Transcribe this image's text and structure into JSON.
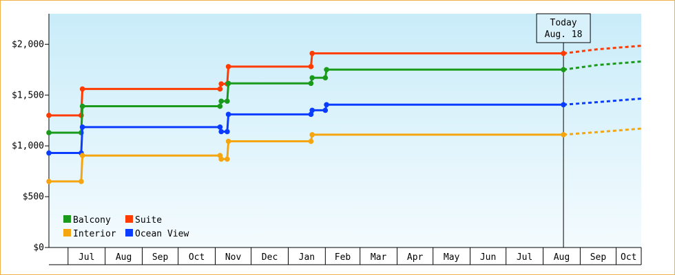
{
  "colors": {
    "balcony": "#1a9a1a",
    "suite": "#ff3b00",
    "interior": "#f5a510",
    "ocean_view": "#0a3cff",
    "plot_top": "#c9ecf9",
    "plot_bottom": "#f4fbfe",
    "frame": "#f0b04a"
  },
  "chart_data": {
    "type": "line",
    "step": true,
    "grid": false,
    "legend_position": "bottom-left",
    "x_type": "date",
    "xlim": [
      "2023-06-15",
      "2024-10-22"
    ],
    "ylim": [
      0,
      2300
    ],
    "y_ticks": [
      0,
      500,
      1000,
      1500,
      2000
    ],
    "y_tick_labels": [
      "$0",
      "$500",
      "$1,000",
      "$1,500",
      "$2,000"
    ],
    "x_tick_labels": [
      "Jul",
      "Aug",
      "Sep",
      "Oct",
      "Nov",
      "Dec",
      "Jan",
      "Feb",
      "Mar",
      "Apr",
      "May",
      "Jun",
      "Jul",
      "Aug",
      "Sep",
      "Oct"
    ],
    "x_tick_positions": [
      "2023-07-01",
      "2023-08-01",
      "2023-09-01",
      "2023-10-01",
      "2023-11-01",
      "2023-12-01",
      "2024-01-01",
      "2024-02-01",
      "2024-03-01",
      "2024-04-01",
      "2024-05-01",
      "2024-06-01",
      "2024-07-01",
      "2024-08-01",
      "2024-09-01",
      "2024-10-01"
    ],
    "today_annotation": {
      "line1": "Today",
      "line2": "Aug. 18",
      "date": "2024-08-18"
    },
    "series": [
      {
        "name": "Suite",
        "color_key": "suite",
        "points": [
          [
            "2023-06-15",
            1300
          ],
          [
            "2023-07-12",
            1300
          ],
          [
            "2023-07-13",
            1560
          ],
          [
            "2023-11-05",
            1560
          ],
          [
            "2023-11-06",
            1610
          ],
          [
            "2023-11-11",
            1610
          ],
          [
            "2023-11-12",
            1780
          ],
          [
            "2024-01-20",
            1780
          ],
          [
            "2024-01-21",
            1910
          ],
          [
            "2024-08-18",
            1910
          ]
        ],
        "projection": [
          [
            "2024-08-18",
            1910
          ],
          [
            "2024-09-15",
            1950
          ],
          [
            "2024-10-22",
            1985
          ]
        ]
      },
      {
        "name": "Balcony",
        "color_key": "balcony",
        "points": [
          [
            "2023-06-15",
            1130
          ],
          [
            "2023-07-12",
            1130
          ],
          [
            "2023-07-13",
            1390
          ],
          [
            "2023-11-05",
            1390
          ],
          [
            "2023-11-06",
            1440
          ],
          [
            "2023-11-11",
            1440
          ],
          [
            "2023-11-12",
            1615
          ],
          [
            "2024-01-20",
            1615
          ],
          [
            "2024-01-21",
            1670
          ],
          [
            "2024-02-01",
            1670
          ],
          [
            "2024-02-02",
            1750
          ],
          [
            "2024-08-18",
            1750
          ]
        ],
        "projection": [
          [
            "2024-08-18",
            1750
          ],
          [
            "2024-09-15",
            1795
          ],
          [
            "2024-10-22",
            1830
          ]
        ]
      },
      {
        "name": "Ocean View",
        "color_key": "ocean_view",
        "points": [
          [
            "2023-06-15",
            930
          ],
          [
            "2023-07-12",
            930
          ],
          [
            "2023-07-13",
            1185
          ],
          [
            "2023-11-05",
            1185
          ],
          [
            "2023-11-06",
            1140
          ],
          [
            "2023-11-11",
            1140
          ],
          [
            "2023-11-12",
            1310
          ],
          [
            "2024-01-20",
            1310
          ],
          [
            "2024-01-21",
            1350
          ],
          [
            "2024-02-01",
            1350
          ],
          [
            "2024-02-02",
            1405
          ],
          [
            "2024-08-18",
            1405
          ]
        ],
        "projection": [
          [
            "2024-08-18",
            1405
          ],
          [
            "2024-09-15",
            1430
          ],
          [
            "2024-10-22",
            1465
          ]
        ]
      },
      {
        "name": "Interior",
        "color_key": "interior",
        "points": [
          [
            "2023-06-15",
            650
          ],
          [
            "2023-07-12",
            650
          ],
          [
            "2023-07-13",
            905
          ],
          [
            "2023-11-05",
            905
          ],
          [
            "2023-11-06",
            870
          ],
          [
            "2023-11-11",
            870
          ],
          [
            "2023-11-12",
            1045
          ],
          [
            "2024-01-20",
            1045
          ],
          [
            "2024-01-21",
            1110
          ],
          [
            "2024-08-18",
            1110
          ]
        ],
        "projection": [
          [
            "2024-08-18",
            1110
          ],
          [
            "2024-09-15",
            1135
          ],
          [
            "2024-10-22",
            1170
          ]
        ]
      }
    ],
    "legend": [
      {
        "label": "Balcony",
        "color_key": "balcony"
      },
      {
        "label": "Suite",
        "color_key": "suite"
      },
      {
        "label": "Interior",
        "color_key": "interior"
      },
      {
        "label": "Ocean View",
        "color_key": "ocean_view"
      }
    ]
  }
}
